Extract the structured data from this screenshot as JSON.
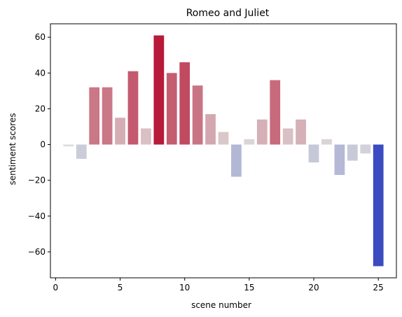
{
  "chart_data": {
    "type": "bar",
    "title": "Romeo and Juliet",
    "xlabel": "scene number",
    "ylabel": "sentiment scores",
    "x": [
      1,
      2,
      3,
      4,
      5,
      6,
      7,
      8,
      9,
      10,
      11,
      12,
      13,
      14,
      15,
      16,
      17,
      18,
      19,
      20,
      21,
      22,
      23,
      24,
      25
    ],
    "values": [
      -1,
      -8,
      32,
      32,
      15,
      41,
      9,
      61,
      40,
      46,
      33,
      17,
      7,
      -18,
      3,
      14,
      36,
      9,
      14,
      -10,
      3,
      -17,
      -9,
      -5,
      -68
    ],
    "xlim": [
      -0.4,
      26.4
    ],
    "ylim": [
      -74.5,
      67.5
    ],
    "xticks": [
      0,
      5,
      10,
      15,
      20,
      25
    ],
    "yticks": [
      -60,
      -40,
      -20,
      0,
      20,
      40,
      60
    ],
    "ytick_labels": [
      "−60",
      "−40",
      "−20",
      "0",
      "20",
      "40",
      "60"
    ],
    "colormap": "coolwarm",
    "grid": false,
    "colors": {
      "cold": "#3b4cc0",
      "neutral": "#dddddd",
      "warm": "#b40426",
      "axis": "#000000"
    }
  }
}
